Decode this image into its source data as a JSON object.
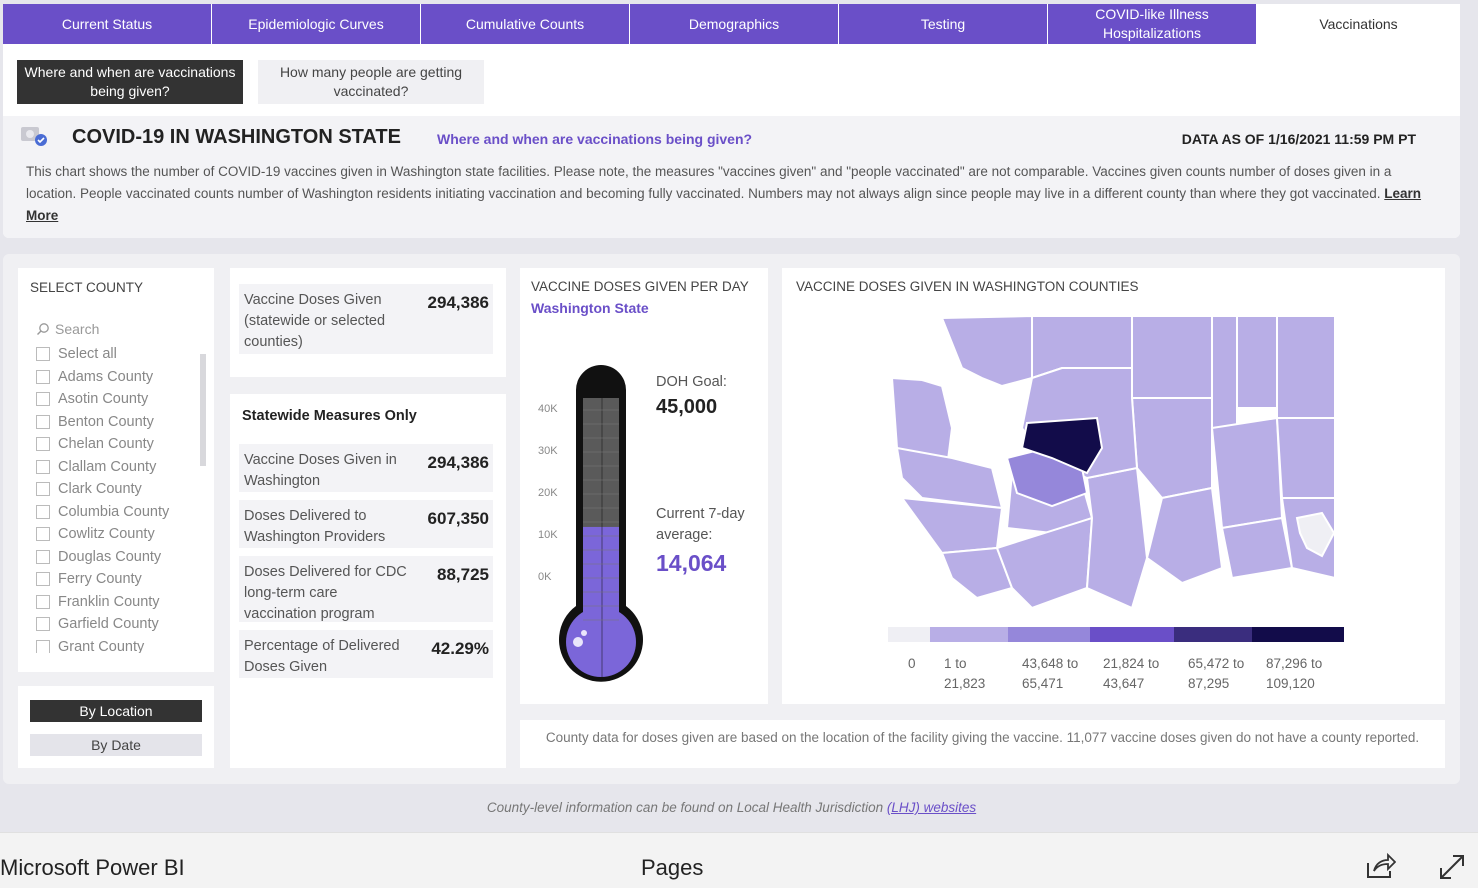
{
  "tabs": [
    {
      "label": "Current Status"
    },
    {
      "label": "Epidemiologic Curves"
    },
    {
      "label": "Cumulative Counts"
    },
    {
      "label": "Demographics"
    },
    {
      "label": "Testing"
    },
    {
      "label": "COVID-like Illness Hospitalizations"
    },
    {
      "label": "Vaccinations"
    }
  ],
  "subnav": {
    "where_when": "Where and when are vaccinations being given?",
    "how_many": "How many people are getting vaccinated?"
  },
  "header": {
    "title": "COVID-19 IN WASHINGTON STATE",
    "subtitle": "Where and when are vaccinations being given?",
    "data_as_of": "DATA AS OF 1/16/2021 11:59 PM PT",
    "description": "This chart shows the number of COVID-19 vaccines given in Washington state facilities. Please note, the measures \"vaccines given\" and \"people vaccinated\" are not comparable. Vaccines given counts number of doses given in a location. People vaccinated counts number of Washington residents initiating vaccination and becoming fully vaccinated. Numbers may not always align since people may live in a different county than where they got vaccinated.",
    "learn_more": "Learn More"
  },
  "county_filter": {
    "title": "SELECT COUNTY",
    "search_placeholder": "Search",
    "items": [
      {
        "label": "Select all"
      },
      {
        "label": "Adams County"
      },
      {
        "label": "Asotin County"
      },
      {
        "label": "Benton County"
      },
      {
        "label": "Chelan County"
      },
      {
        "label": "Clallam County"
      },
      {
        "label": "Clark County"
      },
      {
        "label": "Columbia County"
      },
      {
        "label": "Cowlitz County"
      },
      {
        "label": "Douglas County"
      },
      {
        "label": "Ferry County"
      },
      {
        "label": "Franklin County"
      },
      {
        "label": "Garfield County"
      },
      {
        "label": "Grant County"
      }
    ]
  },
  "mode": {
    "by_location": "By Location",
    "by_date": "By Date"
  },
  "kpi_top": {
    "label": "Vaccine Doses Given (statewide or selected counties)",
    "value": "294,386"
  },
  "statewide": {
    "heading": "Statewide Measures Only",
    "rows": [
      {
        "label": "Vaccine Doses Given in Washington",
        "value": "294,386"
      },
      {
        "label": "Doses Delivered to Washington Providers",
        "value": "607,350"
      },
      {
        "label": "Doses Delivered for CDC long-term care vaccination program",
        "value": "88,725"
      },
      {
        "label": "Percentage of Delivered Doses Given",
        "value": "42.29%"
      }
    ]
  },
  "thermometer": {
    "title": "VACCINE DOSES GIVEN PER DAY",
    "subtitle": "Washington State",
    "goal_label": "DOH Goal:",
    "goal_value": "45,000",
    "average_label": "Current 7-day average:",
    "average_value": "14,064",
    "goal": 45000,
    "average": 14064,
    "ticks": [
      "40K",
      "30K",
      "20K",
      "10K",
      "0K"
    ],
    "colors": {
      "fill": "#7b66d9",
      "empty": "#5a5a5a",
      "outline": "#111111"
    }
  },
  "map": {
    "title": "VACCINE DOSES GIVEN IN WASHINGTON COUNTIES",
    "legend": [
      {
        "label": "0",
        "color": "#efeff4"
      },
      {
        "label": "1 to 21,823",
        "color": "#b8aee6"
      },
      {
        "label": "43,648 to 65,471",
        "color": "#9587da"
      },
      {
        "label": "21,824 to 43,647",
        "color": "#6a4fc8"
      },
      {
        "label": "65,472 to 87,295",
        "color": "#3a2d7e"
      },
      {
        "label": "87,296 to 109,120",
        "color": "#120c4a"
      }
    ]
  },
  "note": "County data for doses given are based on the location of the facility giving the vaccine. 11,077 vaccine doses given do not have a county reported.",
  "footer": {
    "text": "County-level information can be found on Local Health Jurisdiction",
    "link": "(LHJ) websites"
  },
  "bottom_bar": {
    "brand": "Microsoft Power BI",
    "pages": "Pages"
  }
}
